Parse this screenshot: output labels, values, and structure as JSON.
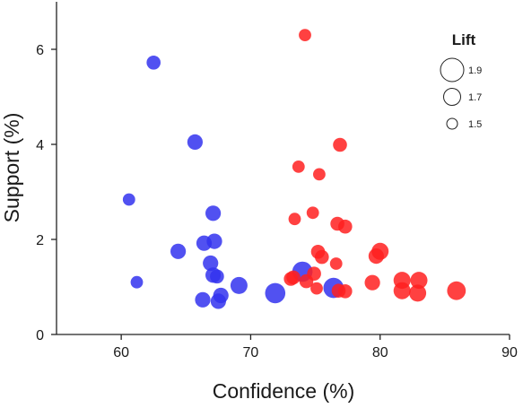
{
  "chart_data": {
    "type": "scatter",
    "title": "",
    "xlabel": "Confidence (%)",
    "ylabel": "Support (%)",
    "xlim": [
      55,
      90
    ],
    "ylim": [
      0,
      7
    ],
    "xticks": [
      60,
      70,
      80,
      90
    ],
    "yticks": [
      0,
      2,
      4,
      6
    ],
    "grid": false,
    "legend": {
      "title": "Lift",
      "placement": "top-right",
      "entries": [
        {
          "label": "1.9",
          "lift": 1.9
        },
        {
          "label": "1.7",
          "lift": 1.7
        },
        {
          "label": "1.5",
          "lift": 1.5
        }
      ]
    },
    "series": [
      {
        "color": "#3333ee",
        "points": [
          {
            "x": 62.5,
            "y": 5.72,
            "lift": 1.6
          },
          {
            "x": 65.7,
            "y": 4.05,
            "lift": 1.65
          },
          {
            "x": 60.6,
            "y": 2.84,
            "lift": 1.55
          },
          {
            "x": 61.2,
            "y": 1.1,
            "lift": 1.55
          },
          {
            "x": 67.1,
            "y": 2.55,
            "lift": 1.65
          },
          {
            "x": 66.4,
            "y": 1.92,
            "lift": 1.65
          },
          {
            "x": 67.2,
            "y": 1.96,
            "lift": 1.65
          },
          {
            "x": 64.4,
            "y": 1.75,
            "lift": 1.65
          },
          {
            "x": 66.9,
            "y": 1.5,
            "lift": 1.65
          },
          {
            "x": 67.1,
            "y": 1.25,
            "lift": 1.65
          },
          {
            "x": 67.4,
            "y": 1.22,
            "lift": 1.6
          },
          {
            "x": 69.1,
            "y": 1.03,
            "lift": 1.7
          },
          {
            "x": 66.3,
            "y": 0.73,
            "lift": 1.65
          },
          {
            "x": 67.7,
            "y": 0.82,
            "lift": 1.65
          },
          {
            "x": 67.5,
            "y": 0.7,
            "lift": 1.65
          },
          {
            "x": 71.9,
            "y": 0.87,
            "lift": 1.8
          },
          {
            "x": 74.0,
            "y": 1.32,
            "lift": 1.8
          },
          {
            "x": 76.4,
            "y": 0.98,
            "lift": 1.8
          }
        ]
      },
      {
        "color": "#ff2020",
        "points": [
          {
            "x": 74.2,
            "y": 6.3,
            "lift": 1.55
          },
          {
            "x": 76.9,
            "y": 3.99,
            "lift": 1.6
          },
          {
            "x": 73.7,
            "y": 3.53,
            "lift": 1.55
          },
          {
            "x": 75.3,
            "y": 3.37,
            "lift": 1.55
          },
          {
            "x": 73.4,
            "y": 2.43,
            "lift": 1.55
          },
          {
            "x": 74.8,
            "y": 2.56,
            "lift": 1.55
          },
          {
            "x": 76.7,
            "y": 2.33,
            "lift": 1.6
          },
          {
            "x": 77.3,
            "y": 2.27,
            "lift": 1.6
          },
          {
            "x": 75.2,
            "y": 1.74,
            "lift": 1.6
          },
          {
            "x": 75.5,
            "y": 1.63,
            "lift": 1.6
          },
          {
            "x": 76.6,
            "y": 1.49,
            "lift": 1.55
          },
          {
            "x": 80.0,
            "y": 1.75,
            "lift": 1.7
          },
          {
            "x": 79.7,
            "y": 1.65,
            "lift": 1.65
          },
          {
            "x": 73.1,
            "y": 1.17,
            "lift": 1.6
          },
          {
            "x": 73.3,
            "y": 1.2,
            "lift": 1.6
          },
          {
            "x": 74.3,
            "y": 1.12,
            "lift": 1.6
          },
          {
            "x": 74.9,
            "y": 1.28,
            "lift": 1.6
          },
          {
            "x": 75.1,
            "y": 0.97,
            "lift": 1.55
          },
          {
            "x": 76.8,
            "y": 0.92,
            "lift": 1.6
          },
          {
            "x": 77.3,
            "y": 0.91,
            "lift": 1.6
          },
          {
            "x": 79.4,
            "y": 1.09,
            "lift": 1.65
          },
          {
            "x": 81.7,
            "y": 1.14,
            "lift": 1.7
          },
          {
            "x": 83.0,
            "y": 1.14,
            "lift": 1.7
          },
          {
            "x": 81.7,
            "y": 0.92,
            "lift": 1.7
          },
          {
            "x": 82.9,
            "y": 0.87,
            "lift": 1.7
          },
          {
            "x": 85.9,
            "y": 0.92,
            "lift": 1.75
          }
        ]
      }
    ]
  }
}
